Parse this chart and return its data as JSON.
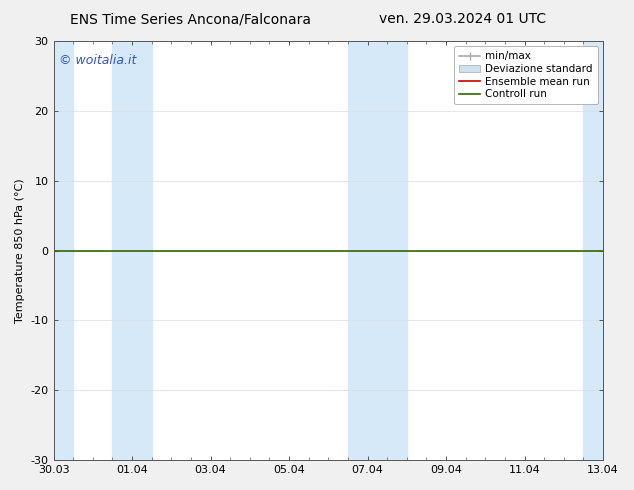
{
  "title_left": "ENS Time Series Ancona/Falconara",
  "title_right": "ven. 29.03.2024 01 UTC",
  "ylabel": "Temperature 850 hPa (°C)",
  "ylim": [
    -30,
    30
  ],
  "yticks": [
    -30,
    -20,
    -10,
    0,
    10,
    20,
    30
  ],
  "x_tick_labels": [
    "30.03",
    "01.04",
    "03.04",
    "05.04",
    "07.04",
    "09.04",
    "11.04",
    "13.04"
  ],
  "x_tick_positions": [
    0,
    2,
    4,
    6,
    8,
    10,
    12,
    14
  ],
  "x_total": 14,
  "shaded_bands": [
    {
      "x_start": 0.0,
      "x_end": 0.5
    },
    {
      "x_start": 1.5,
      "x_end": 2.5
    },
    {
      "x_start": 7.5,
      "x_end": 9.0
    },
    {
      "x_start": 13.5,
      "x_end": 14.0
    }
  ],
  "band_color": "#d6e9f8",
  "band_alpha": 1.0,
  "ctrl_line_y": 0.0,
  "ctrl_line_color": "#336600",
  "ctrl_line_lw": 1.2,
  "ensemble_line_color": "#cc0000",
  "watermark_text": "© woitalia.it",
  "watermark_color": "#3355bb",
  "watermark_fontsize": 9,
  "legend_minmax_color": "#aaaaaa",
  "legend_std_color": "#cce0f0",
  "legend_ensemble_color": "#cc0000",
  "legend_control_color": "#336600",
  "bg_color": "#f0f0f0",
  "plot_bg_color": "#ffffff",
  "grid_color": "#dddddd",
  "spine_color": "#555555",
  "font_family": "DejaVu Sans",
  "title_fontsize": 10,
  "label_fontsize": 8,
  "tick_fontsize": 8,
  "legend_fontsize": 7.5
}
